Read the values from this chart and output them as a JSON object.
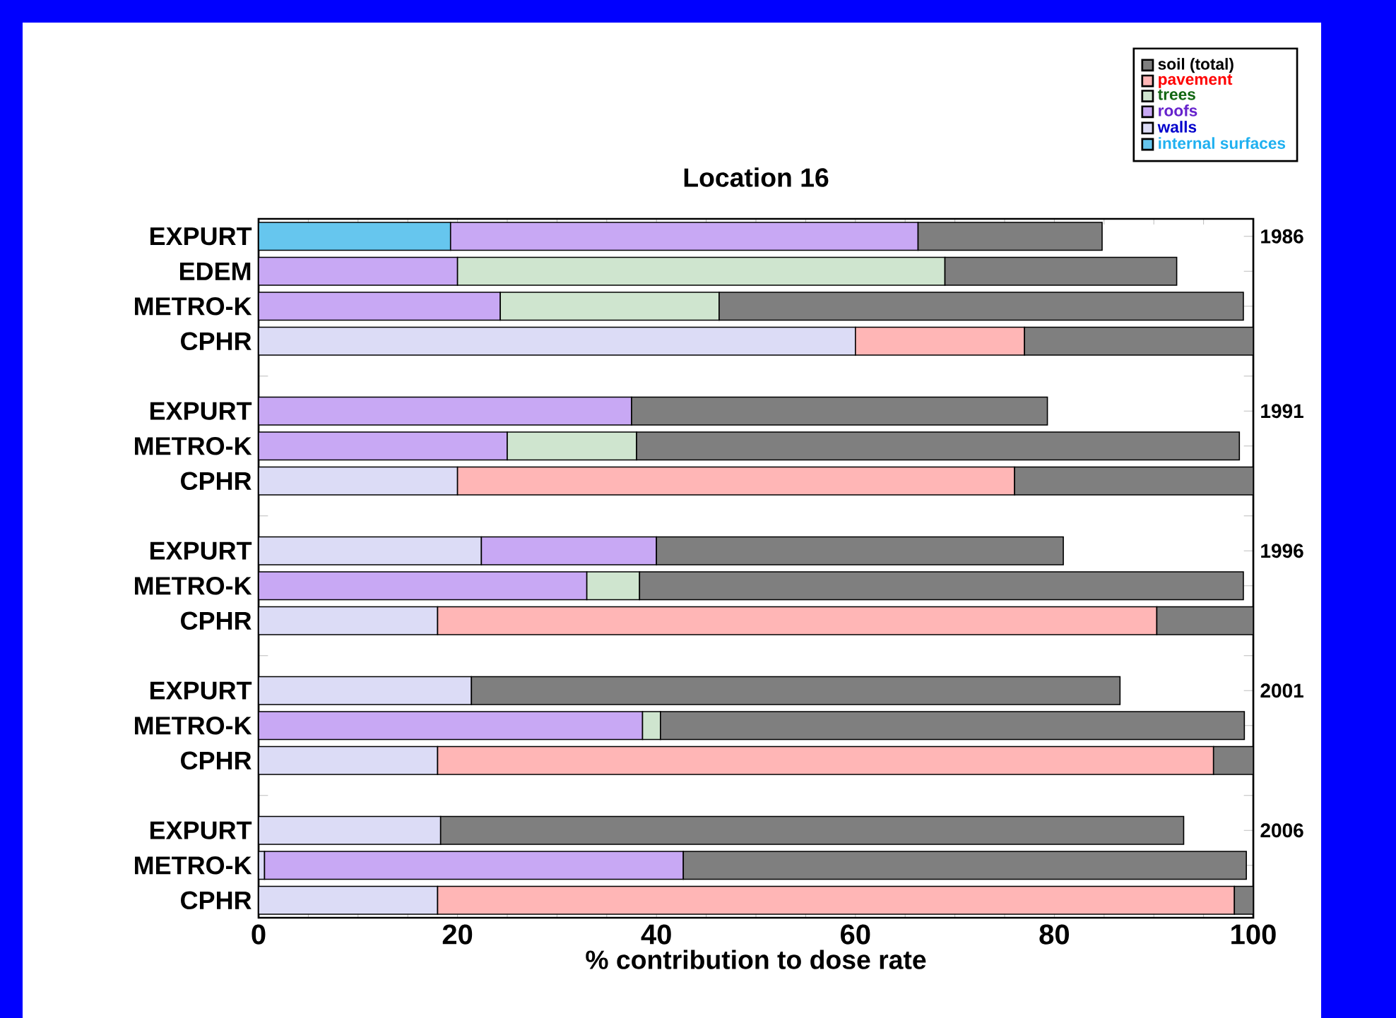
{
  "chart_data": {
    "type": "bar",
    "orientation": "horizontal",
    "stacked": true,
    "title": "Location 16",
    "xlabel": "% contribution to dose rate",
    "categories": [
      "EXPURT",
      "EDEM",
      "METRO-K",
      "CPHR",
      null,
      "EXPURT",
      "METRO-K",
      "CPHR",
      null,
      "EXPURT",
      "METRO-K",
      "CPHR",
      null,
      "EXPURT",
      "METRO-K",
      "CPHR",
      null,
      "EXPURT",
      "METRO-K",
      "CPHR"
    ],
    "series": [
      {
        "name": "internal surfaces",
        "color": "#66c6ee",
        "values": [
          19.3,
          null,
          null,
          null,
          null,
          null,
          null,
          null,
          null,
          null,
          null,
          null,
          null,
          null,
          null,
          null,
          null,
          null,
          null,
          null
        ]
      },
      {
        "name": "walls",
        "color": "#dcdcf6",
        "values": [
          null,
          null,
          null,
          60,
          null,
          null,
          null,
          20,
          null,
          22.4,
          null,
          18,
          null,
          21.4,
          null,
          18,
          null,
          18.3,
          0.6,
          18
        ]
      },
      {
        "name": "roofs",
        "color": "#c8a8f4",
        "values": [
          47,
          20,
          24.3,
          null,
          null,
          37.5,
          25,
          null,
          null,
          17.6,
          33,
          null,
          null,
          null,
          38.6,
          null,
          null,
          null,
          42.1,
          null
        ]
      },
      {
        "name": "trees",
        "color": "#cfe5cf",
        "values": [
          null,
          49,
          22,
          null,
          null,
          null,
          13,
          null,
          null,
          null,
          5.3,
          null,
          null,
          null,
          1.8,
          null,
          null,
          null,
          null,
          null
        ]
      },
      {
        "name": "pavement",
        "color": "#ffb6b6",
        "values": [
          null,
          null,
          null,
          17,
          null,
          null,
          null,
          56,
          null,
          null,
          null,
          72.3,
          null,
          null,
          null,
          78,
          null,
          null,
          null,
          80.1
        ]
      },
      {
        "name": "soil (total)",
        "color": "#7f7f7f",
        "values": [
          18.5,
          23.3,
          52.7,
          23,
          null,
          41.8,
          60.6,
          24,
          null,
          40.9,
          60.7,
          9.7,
          null,
          65.2,
          58.7,
          4,
          null,
          74.7,
          56.6,
          1.9
        ]
      }
    ],
    "xlim": [
      0,
      100
    ],
    "xticks": [
      0,
      20,
      40,
      60,
      80,
      100
    ],
    "legend": "top right",
    "annotations": [
      "1986",
      "1991",
      "1996",
      "2001",
      "2006"
    ]
  }
}
